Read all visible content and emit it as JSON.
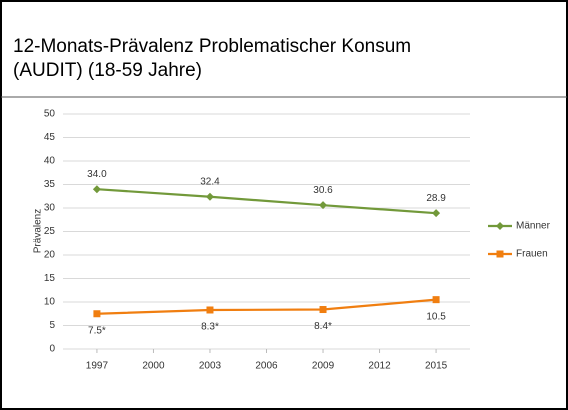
{
  "chart_data": {
    "type": "line",
    "title": [
      "12-Monats-Prävalenz Problematischer Konsum",
      "(AUDIT) (18-59 Jahre)"
    ],
    "y_label": "Prävalenz",
    "x": [
      1997,
      2003,
      2009,
      2015
    ],
    "xlim": [
      1995.2,
      2016.8
    ],
    "xticks": [
      1997,
      2000,
      2003,
      2006,
      2009,
      2012,
      2015
    ],
    "ylim": [
      0,
      50
    ],
    "yticks": [
      0,
      5,
      10,
      15,
      20,
      25,
      30,
      35,
      40,
      45,
      50
    ],
    "grid": true,
    "legend": "right",
    "series": [
      {
        "name": "Männer",
        "color": "#72993a",
        "marker": "diamond",
        "values": [
          34.0,
          32.4,
          30.6,
          28.9
        ],
        "value_labels": [
          "34.0",
          "32.4",
          "30.6",
          "28.9"
        ],
        "label_position": "above"
      },
      {
        "name": "Frauen",
        "color": "#f07e10",
        "marker": "square",
        "values": [
          7.5,
          8.3,
          8.4,
          10.5
        ],
        "value_labels": [
          "7.5*",
          "8.3*",
          "8.4*",
          "10.5"
        ],
        "label_position": "below"
      }
    ]
  }
}
